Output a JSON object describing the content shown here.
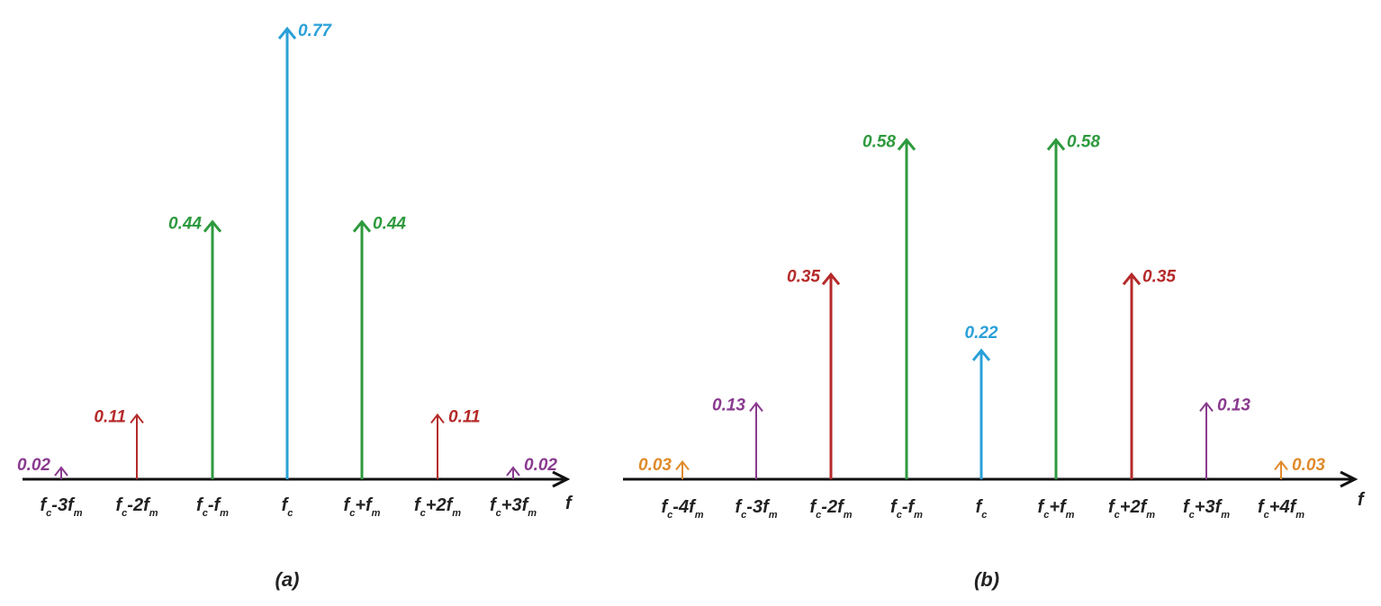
{
  "chart_data": [
    {
      "type": "bar",
      "caption": "(a)",
      "axis_label": "f",
      "categories": [
        {
          "base": "f",
          "sub": "c",
          "rest": "-3f",
          "rest_sub": "m"
        },
        {
          "base": "f",
          "sub": "c",
          "rest": "-2f",
          "rest_sub": "m"
        },
        {
          "base": "f",
          "sub": "c",
          "rest": "-f",
          "rest_sub": "m"
        },
        {
          "base": "f",
          "sub": "c",
          "rest": "",
          "rest_sub": ""
        },
        {
          "base": "f",
          "sub": "c",
          "rest": "+f",
          "rest_sub": "m"
        },
        {
          "base": "f",
          "sub": "c",
          "rest": "+2f",
          "rest_sub": "m"
        },
        {
          "base": "f",
          "sub": "c",
          "rest": "+3f",
          "rest_sub": "m"
        }
      ],
      "values": [
        0.02,
        0.11,
        0.44,
        0.77,
        0.44,
        0.11,
        0.02
      ],
      "labels": [
        "0.02",
        "0.11",
        "0.44",
        "0.77",
        "0.44",
        "0.11",
        "0.02"
      ],
      "colors": [
        "#8a3a8f",
        "#b52a2a",
        "#2e9a3e",
        "#2aa0d8",
        "#2e9a3e",
        "#b52a2a",
        "#8a3a8f"
      ],
      "ylim": [
        0,
        0.77
      ]
    },
    {
      "type": "bar",
      "caption": "(b)",
      "axis_label": "f",
      "categories": [
        {
          "base": "f",
          "sub": "c",
          "rest": "-4f",
          "rest_sub": "m"
        },
        {
          "base": "f",
          "sub": "c",
          "rest": "-3f",
          "rest_sub": "m"
        },
        {
          "base": "f",
          "sub": "c",
          "rest": "-2f",
          "rest_sub": "m"
        },
        {
          "base": "f",
          "sub": "c",
          "rest": "-f",
          "rest_sub": "m"
        },
        {
          "base": "f",
          "sub": "c",
          "rest": "",
          "rest_sub": ""
        },
        {
          "base": "f",
          "sub": "c",
          "rest": "+f",
          "rest_sub": "m"
        },
        {
          "base": "f",
          "sub": "c",
          "rest": "+2f",
          "rest_sub": "m"
        },
        {
          "base": "f",
          "sub": "c",
          "rest": "+3f",
          "rest_sub": "m"
        },
        {
          "base": "f",
          "sub": "c",
          "rest": "+4f",
          "rest_sub": "m"
        }
      ],
      "values": [
        0.03,
        0.13,
        0.35,
        0.58,
        0.22,
        0.58,
        0.35,
        0.13,
        0.03
      ],
      "labels": [
        "0.03",
        "0.13",
        "0.35",
        "0.58",
        "0.22",
        "0.58",
        "0.35",
        "0.13",
        "0.03"
      ],
      "colors": [
        "#e08a2a",
        "#8a3a8f",
        "#b52a2a",
        "#2e9a3e",
        "#2aa0d8",
        "#2e9a3e",
        "#b52a2a",
        "#8a3a8f",
        "#e08a2a"
      ],
      "ylim": [
        0,
        0.77
      ]
    }
  ]
}
